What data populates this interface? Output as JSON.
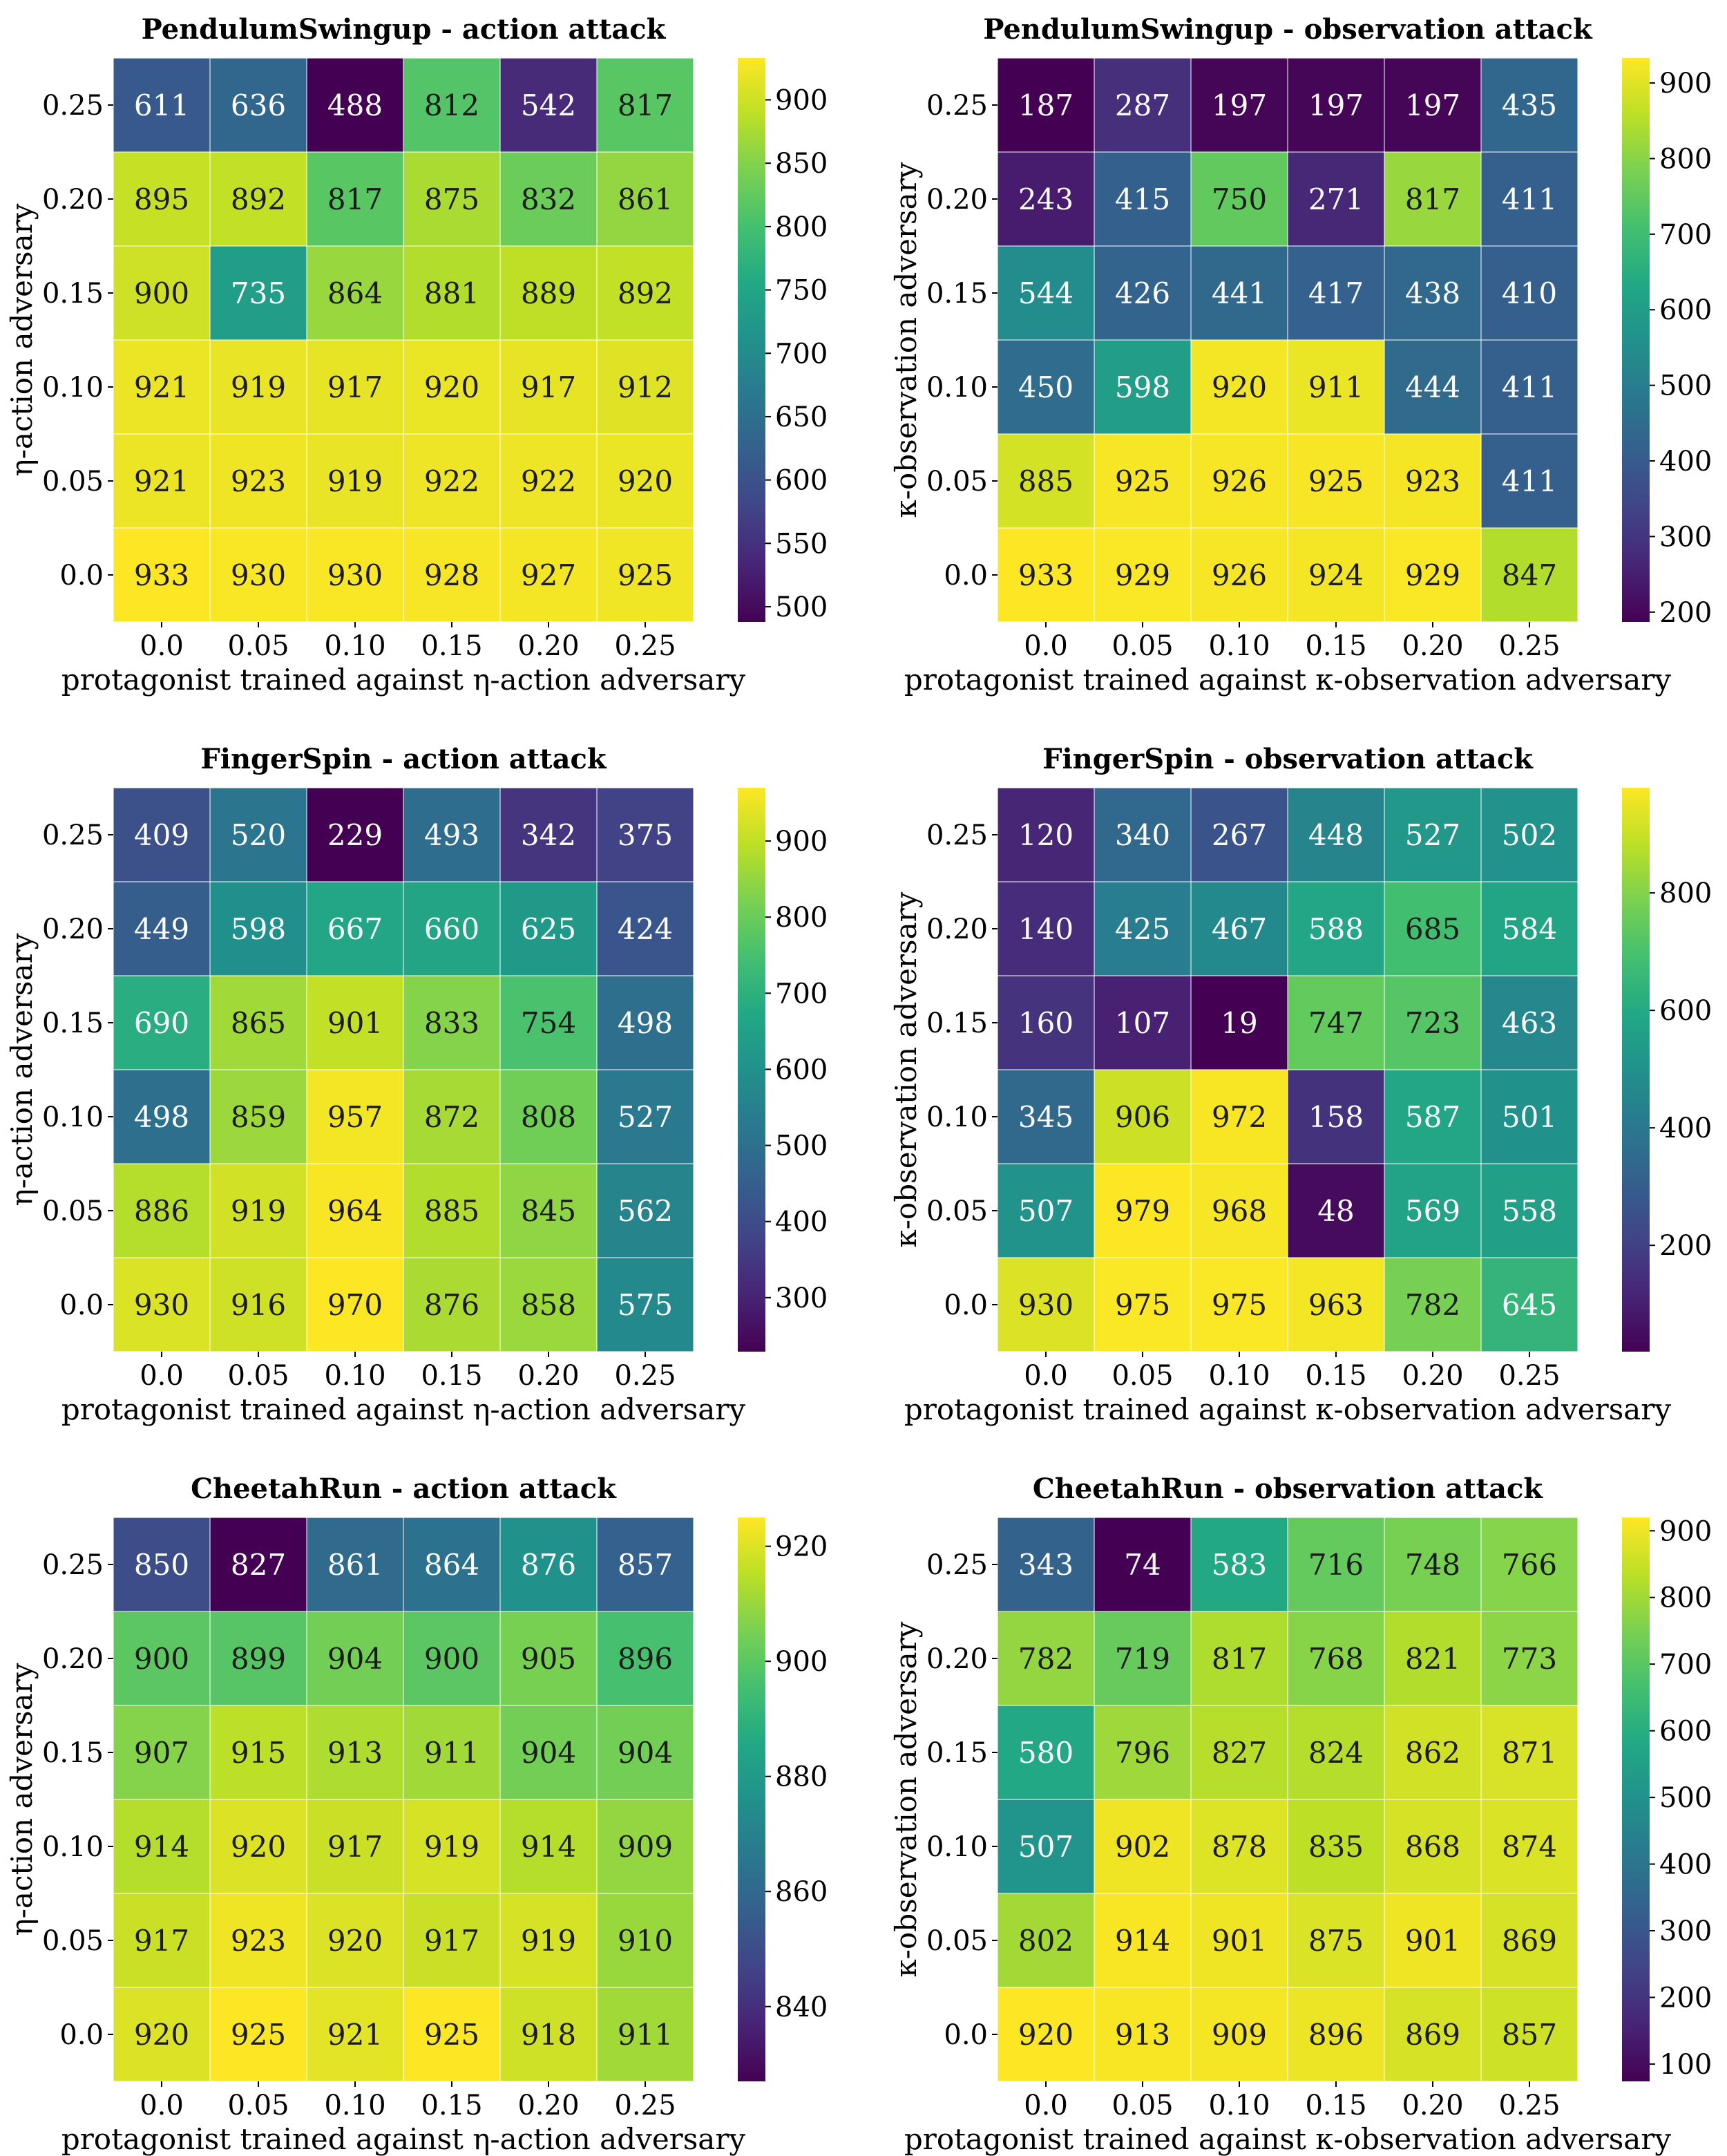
{
  "chart_data": [
    {
      "type": "heatmap",
      "title": "PendulumSwingup - action attack",
      "xlabel": "protagonist trained against η-action adversary",
      "ylabel": "η-action adversary",
      "x_ticks": [
        "0.0",
        "0.05",
        "0.10",
        "0.15",
        "0.20",
        "0.25"
      ],
      "y_ticks": [
        "0.25",
        "0.20",
        "0.15",
        "0.10",
        "0.05",
        "0.0"
      ],
      "values": [
        [
          611,
          636,
          488,
          812,
          542,
          817
        ],
        [
          895,
          892,
          817,
          875,
          832,
          861
        ],
        [
          900,
          735,
          864,
          881,
          889,
          892
        ],
        [
          921,
          919,
          917,
          920,
          917,
          912
        ],
        [
          921,
          923,
          919,
          922,
          922,
          920
        ],
        [
          933,
          930,
          930,
          928,
          927,
          925
        ]
      ],
      "colorbar": {
        "min": 488,
        "max": 933,
        "ticks": [
          500,
          550,
          600,
          650,
          700,
          750,
          800,
          850,
          900
        ]
      },
      "colormap": "viridis"
    },
    {
      "type": "heatmap",
      "title": "PendulumSwingup - observation attack",
      "xlabel": "protagonist trained against κ-observation adversary",
      "ylabel": "κ-observation adversary",
      "x_ticks": [
        "0.0",
        "0.05",
        "0.10",
        "0.15",
        "0.20",
        "0.25"
      ],
      "y_ticks": [
        "0.25",
        "0.20",
        "0.15",
        "0.10",
        "0.05",
        "0.0"
      ],
      "values": [
        [
          187,
          287,
          197,
          197,
          197,
          435
        ],
        [
          243,
          415,
          750,
          271,
          817,
          411
        ],
        [
          544,
          426,
          441,
          417,
          438,
          410
        ],
        [
          450,
          598,
          920,
          911,
          444,
          411
        ],
        [
          885,
          925,
          926,
          925,
          923,
          411
        ],
        [
          933,
          929,
          926,
          924,
          929,
          847
        ]
      ],
      "colorbar": {
        "min": 187,
        "max": 933,
        "ticks": [
          200,
          300,
          400,
          500,
          600,
          700,
          800,
          900
        ]
      },
      "colormap": "viridis"
    },
    {
      "type": "heatmap",
      "title": "FingerSpin - action attack",
      "xlabel": "protagonist trained against η-action adversary",
      "ylabel": "η-action adversary",
      "x_ticks": [
        "0.0",
        "0.05",
        "0.10",
        "0.15",
        "0.20",
        "0.25"
      ],
      "y_ticks": [
        "0.25",
        "0.20",
        "0.15",
        "0.10",
        "0.05",
        "0.0"
      ],
      "values": [
        [
          409,
          520,
          229,
          493,
          342,
          375
        ],
        [
          449,
          598,
          667,
          660,
          625,
          424
        ],
        [
          690,
          865,
          901,
          833,
          754,
          498
        ],
        [
          498,
          859,
          957,
          872,
          808,
          527
        ],
        [
          886,
          919,
          964,
          885,
          845,
          562
        ],
        [
          930,
          916,
          970,
          876,
          858,
          575
        ]
      ],
      "colorbar": {
        "min": 229,
        "max": 970,
        "ticks": [
          300,
          400,
          500,
          600,
          700,
          800,
          900
        ]
      },
      "colormap": "viridis"
    },
    {
      "type": "heatmap",
      "title": "FingerSpin - observation attack",
      "xlabel": "protagonist trained against κ-observation adversary",
      "ylabel": "κ-observation adversary",
      "x_ticks": [
        "0.0",
        "0.05",
        "0.10",
        "0.15",
        "0.20",
        "0.25"
      ],
      "y_ticks": [
        "0.25",
        "0.20",
        "0.15",
        "0.10",
        "0.05",
        "0.0"
      ],
      "values": [
        [
          120,
          340,
          267,
          448,
          527,
          502
        ],
        [
          140,
          425,
          467,
          588,
          685,
          584
        ],
        [
          160,
          107,
          19,
          747,
          723,
          463
        ],
        [
          345,
          906,
          972,
          158,
          587,
          501
        ],
        [
          507,
          979,
          968,
          48,
          569,
          558
        ],
        [
          930,
          975,
          975,
          963,
          782,
          645
        ]
      ],
      "colorbar": {
        "min": 19,
        "max": 979,
        "ticks": [
          200,
          400,
          600,
          800
        ]
      },
      "colormap": "viridis"
    },
    {
      "type": "heatmap",
      "title": "CheetahRun - action attack",
      "xlabel": "protagonist trained against η-action adversary",
      "ylabel": "η-action adversary",
      "x_ticks": [
        "0.0",
        "0.05",
        "0.10",
        "0.15",
        "0.20",
        "0.25"
      ],
      "y_ticks": [
        "0.25",
        "0.20",
        "0.15",
        "0.10",
        "0.05",
        "0.0"
      ],
      "values": [
        [
          850,
          827,
          861,
          864,
          876,
          857
        ],
        [
          900,
          899,
          904,
          900,
          905,
          896
        ],
        [
          907,
          915,
          913,
          911,
          904,
          904
        ],
        [
          914,
          920,
          917,
          919,
          914,
          909
        ],
        [
          917,
          923,
          920,
          917,
          919,
          910
        ],
        [
          920,
          925,
          921,
          925,
          918,
          911
        ]
      ],
      "colorbar": {
        "min": 827,
        "max": 925,
        "ticks": [
          840,
          860,
          880,
          900,
          920
        ]
      },
      "colormap": "viridis"
    },
    {
      "type": "heatmap",
      "title": "CheetahRun - observation attack",
      "xlabel": "protagonist trained against κ-observation adversary",
      "ylabel": "κ-observation adversary",
      "x_ticks": [
        "0.0",
        "0.05",
        "0.10",
        "0.15",
        "0.20",
        "0.25"
      ],
      "y_ticks": [
        "0.25",
        "0.20",
        "0.15",
        "0.10",
        "0.05",
        "0.0"
      ],
      "values": [
        [
          343,
          74,
          583,
          716,
          748,
          766
        ],
        [
          782,
          719,
          817,
          768,
          821,
          773
        ],
        [
          580,
          796,
          827,
          824,
          862,
          871
        ],
        [
          507,
          902,
          878,
          835,
          868,
          874
        ],
        [
          802,
          914,
          901,
          875,
          901,
          869
        ],
        [
          920,
          913,
          909,
          896,
          869,
          857
        ]
      ],
      "colorbar": {
        "min": 74,
        "max": 920,
        "ticks": [
          100,
          200,
          300,
          400,
          500,
          600,
          700,
          800,
          900
        ]
      },
      "colormap": "viridis"
    }
  ]
}
